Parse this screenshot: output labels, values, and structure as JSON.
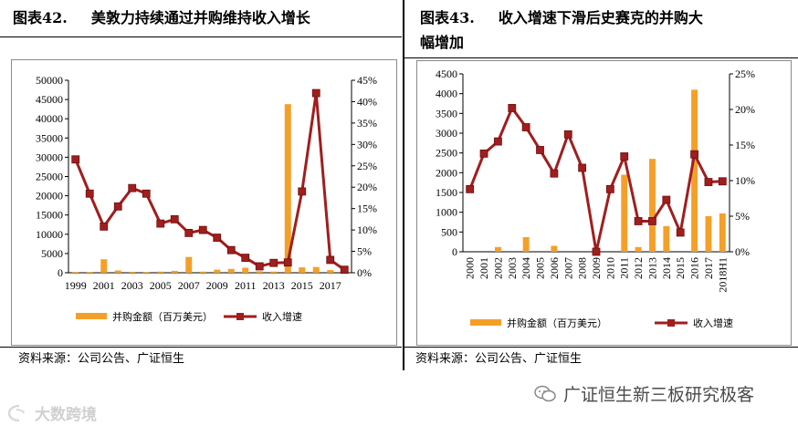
{
  "left": {
    "fig_number": "图表42.",
    "title": "美敦力持续通过并购维持收入增长",
    "source": "资料来源：公司公告、广证恒生"
  },
  "right": {
    "fig_number": "图表43.",
    "title_line1": "收入增速下滑后史赛克的并购大",
    "title_line2": "幅增加",
    "source": "资料来源：公司公告、广证恒生"
  },
  "watermark": {
    "brand": "广证恒生新三板研究极客",
    "logo_text": "大数跨境"
  },
  "colors": {
    "bar": "#F4A028",
    "line": "#A01E1E",
    "marker": "#A01E1E"
  },
  "chart_data": [
    {
      "type": "bar+line",
      "x": [
        "1999",
        "2000",
        "2001",
        "2002",
        "2003",
        "2004",
        "2005",
        "2006",
        "2007",
        "2008",
        "2009",
        "2010",
        "2011",
        "2012",
        "2013",
        "2014",
        "2015",
        "2016",
        "2017",
        "2018"
      ],
      "x_tick_labels": [
        "1999",
        "2001",
        "2003",
        "2005",
        "2007",
        "2009",
        "2011",
        "2013",
        "2015",
        "2017"
      ],
      "left_axis": {
        "ylim": [
          0,
          50000
        ],
        "ticks": [
          "0",
          "5000",
          "10000",
          "15000",
          "20000",
          "25000",
          "30000",
          "35000",
          "40000",
          "45000",
          "50000"
        ]
      },
      "right_axis": {
        "ylim": [
          0,
          45
        ],
        "ticks": [
          "0%",
          "5%",
          "10%",
          "15%",
          "20%",
          "25%",
          "30%",
          "35%",
          "40%",
          "45%"
        ]
      },
      "series": [
        {
          "name": "并购金额（百万美元）",
          "kind": "bar",
          "axis": "left",
          "values": [
            200,
            200,
            3500,
            600,
            250,
            200,
            300,
            500,
            4100,
            300,
            800,
            1000,
            1300,
            400,
            300,
            43800,
            1400,
            1500,
            700,
            100
          ]
        },
        {
          "name": "收入增速",
          "kind": "line",
          "axis": "right",
          "values": [
            26.5,
            18.5,
            10.8,
            15.5,
            19.8,
            18.5,
            11.5,
            12.5,
            9.3,
            10,
            8.2,
            5.3,
            3.5,
            1.5,
            2.3,
            2.4,
            19,
            42,
            3,
            0.7
          ]
        }
      ],
      "legend_position": "bottom",
      "grid": false
    },
    {
      "type": "bar+line",
      "x": [
        "2000",
        "2001",
        "2002",
        "2003",
        "2004",
        "2005",
        "2006",
        "2007",
        "2008",
        "2009",
        "2010",
        "2011",
        "2012",
        "2013",
        "2014",
        "2015",
        "2016",
        "2017",
        "2018H1"
      ],
      "x_tick_labels": [
        "2000",
        "2001",
        "2002",
        "2003",
        "2004",
        "2005",
        "2006",
        "2007",
        "2008",
        "2009",
        "2010",
        "2011",
        "2012",
        "2013",
        "2014",
        "2015",
        "2016",
        "2017",
        "2018H1"
      ],
      "left_axis": {
        "ylim": [
          0,
          4500
        ],
        "ticks": [
          "0",
          "500",
          "1000",
          "1500",
          "2000",
          "2500",
          "3000",
          "3500",
          "4000",
          "4500"
        ]
      },
      "right_axis": {
        "ylim": [
          0,
          25
        ],
        "ticks": [
          "0%",
          "5%",
          "10%",
          "15%",
          "20%",
          "25%"
        ]
      },
      "series": [
        {
          "name": "并购金额（百万美元）",
          "kind": "bar",
          "axis": "left",
          "values": [
            0,
            0,
            120,
            0,
            370,
            0,
            150,
            0,
            0,
            0,
            0,
            1950,
            120,
            2350,
            650,
            0,
            4100,
            900,
            970
          ]
        },
        {
          "name": "收入增速",
          "kind": "line",
          "axis": "right",
          "values": [
            8.8,
            13.8,
            15.5,
            20.2,
            17.5,
            14.3,
            11,
            16.5,
            11.8,
            0,
            8.8,
            13.4,
            4.3,
            4.3,
            7.3,
            2.7,
            13.7,
            9.8,
            9.9
          ]
        }
      ],
      "legend_position": "bottom",
      "grid": false
    }
  ]
}
